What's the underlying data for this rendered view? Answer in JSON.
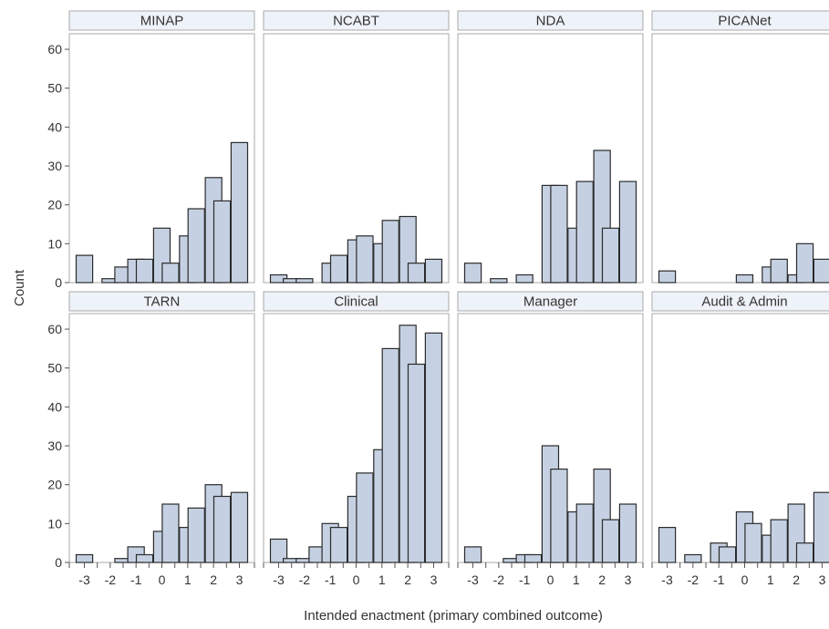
{
  "chart_data": {
    "type": "bar",
    "xlabel": "Intended enactment (primary combined outcome)",
    "ylabel": "Count",
    "ylim": [
      0,
      64
    ],
    "yticks": [
      0,
      10,
      20,
      30,
      40,
      50,
      60
    ],
    "xtick_values": [
      -3,
      -2,
      -1,
      0,
      1,
      2,
      3
    ],
    "xtick_labels": [
      "-3",
      "-2",
      "-1",
      "0",
      "1",
      "2",
      "3"
    ],
    "bin_centers": [
      -3,
      -2.5,
      -2,
      -1.5,
      -1,
      -0.667,
      0,
      0.333,
      1,
      1.333,
      2,
      2.333,
      3
    ],
    "grid": false,
    "colors": {
      "bar_fill": "#c5d1e3",
      "bar_stroke": "#2b2b2b",
      "header_fill": "#eef2f9",
      "panel_border": "#a9a9a9"
    },
    "panels": [
      {
        "title": "MINAP",
        "values": [
          7,
          0,
          1,
          4,
          6,
          6,
          14,
          5,
          12,
          19,
          27,
          21,
          36
        ]
      },
      {
        "title": "NCABT",
        "values": [
          2,
          1,
          1,
          0,
          5,
          7,
          11,
          12,
          10,
          16,
          17,
          5,
          6
        ]
      },
      {
        "title": "NDA",
        "values": [
          5,
          0,
          1,
          0,
          2,
          0,
          25,
          25,
          14,
          26,
          34,
          14,
          26
        ]
      },
      {
        "title": "PICANet",
        "values": [
          3,
          0,
          0,
          0,
          0,
          0,
          2,
          0,
          4,
          6,
          2,
          10,
          6
        ]
      },
      {
        "title": "TARN",
        "values": [
          2,
          0,
          0,
          1,
          4,
          2,
          8,
          15,
          9,
          14,
          20,
          17,
          18
        ]
      },
      {
        "title": "Clinical",
        "values": [
          6,
          1,
          1,
          4,
          10,
          9,
          17,
          23,
          29,
          55,
          61,
          51,
          59
        ]
      },
      {
        "title": "Manager",
        "values": [
          4,
          0,
          0,
          1,
          2,
          2,
          30,
          24,
          13,
          15,
          24,
          11,
          15
        ]
      },
      {
        "title": "Audit & Admin",
        "values": [
          9,
          0,
          2,
          0,
          5,
          4,
          13,
          10,
          7,
          11,
          15,
          5,
          18
        ]
      }
    ]
  }
}
